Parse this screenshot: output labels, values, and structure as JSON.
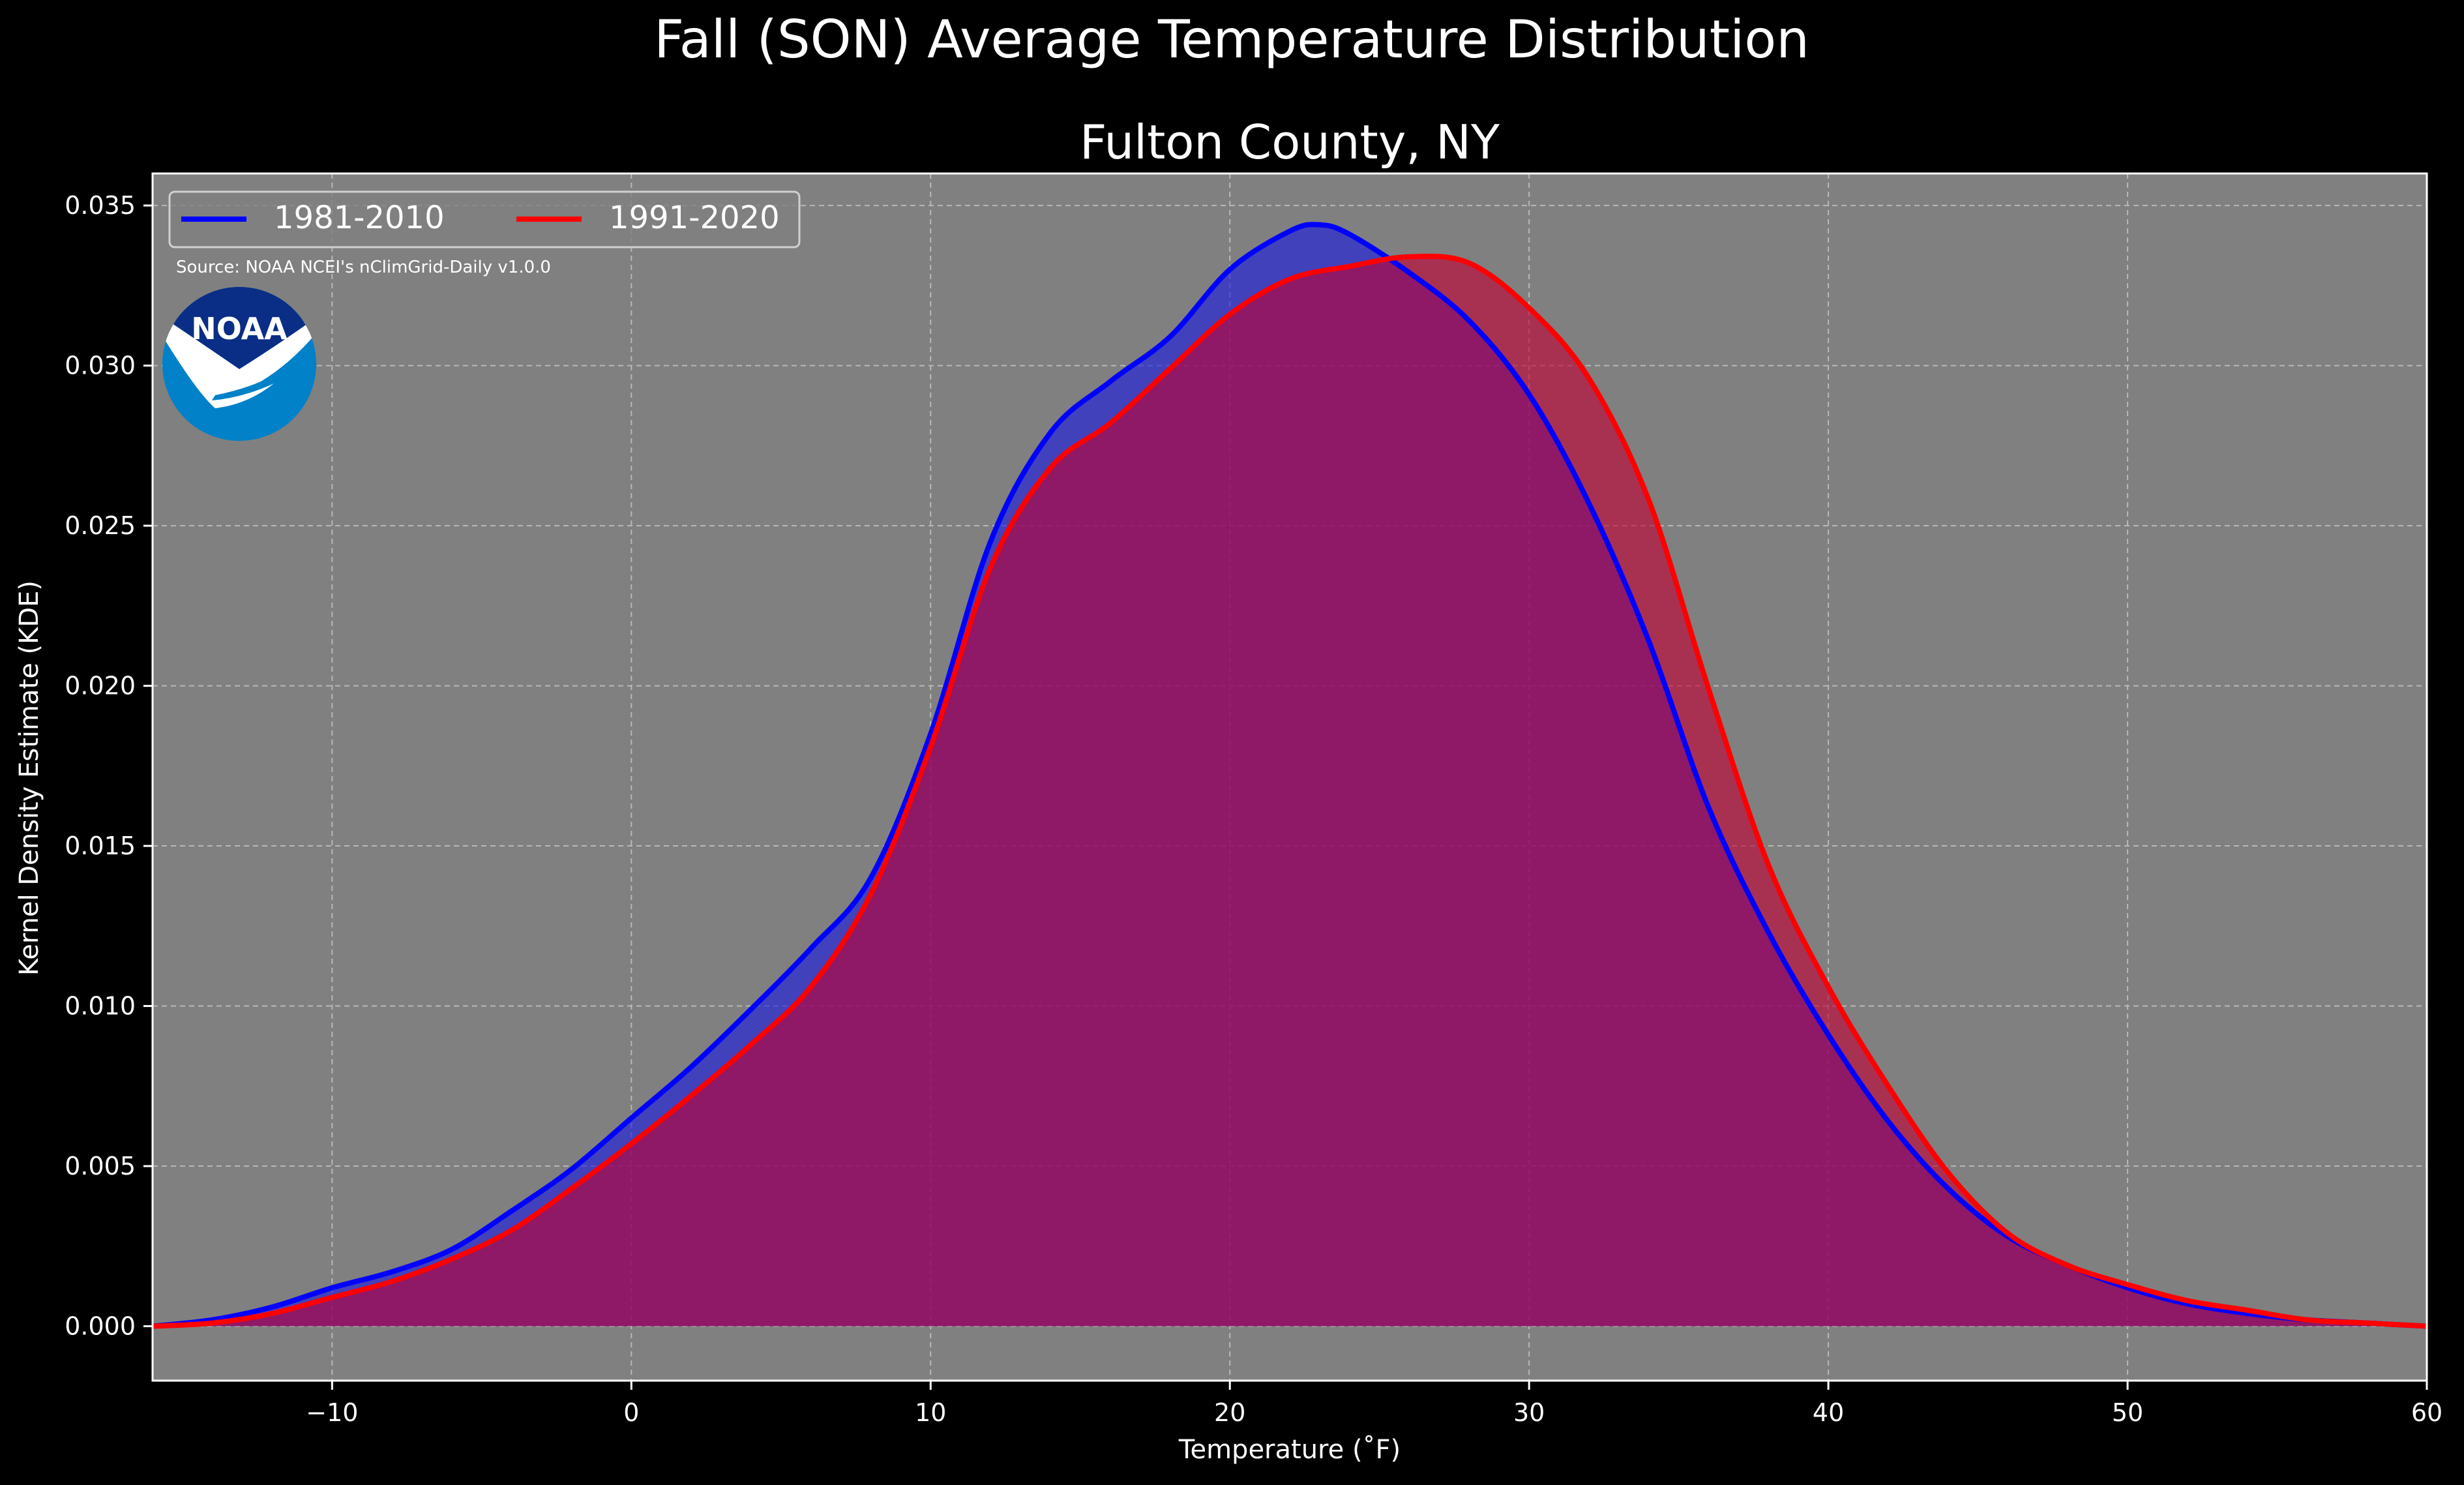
{
  "figure": {
    "suptitle": "Fall (SON) Average Temperature Distribution",
    "subtitle": "Fulton County, NY",
    "source_note": "Source: NOAA NCEI's nClimGrid-Daily v1.0.0",
    "logo_text": "NOAA",
    "colors": {
      "background": "#000000",
      "plot_bg": "#808080",
      "text": "#ffffff",
      "grid": "#b8b8b8"
    }
  },
  "chart_data": {
    "type": "area",
    "title": "Fulton County, NY",
    "xlabel": "Temperature ($^\\circ$F)",
    "xlabel_display": "Temperature (˚F)",
    "ylabel": "Kernel Density Estimate (KDE)",
    "xlim": [
      -16,
      60
    ],
    "ylim": [
      -0.0017,
      0.036
    ],
    "xticks": [
      -10,
      0,
      10,
      20,
      30,
      40,
      50,
      60
    ],
    "xtick_labels": [
      "−10",
      "0",
      "10",
      "20",
      "30",
      "40",
      "50",
      "60"
    ],
    "yticks": [
      0.0,
      0.005,
      0.01,
      0.015,
      0.02,
      0.025,
      0.03,
      0.035
    ],
    "ytick_labels": [
      "0.000",
      "0.005",
      "0.010",
      "0.015",
      "0.020",
      "0.025",
      "0.030",
      "0.035"
    ],
    "grid": true,
    "legend": {
      "placement": "top-left",
      "ncol": 2
    },
    "series": [
      {
        "name": "1981-2010",
        "line_color": "#0000ff",
        "fill_color": "#1a1ae0",
        "fill_opacity": 0.62,
        "x": [
          -16,
          -14,
          -12,
          -10,
          -8,
          -6,
          -4,
          -2,
          0,
          2,
          4,
          6,
          8,
          10,
          12,
          14,
          16,
          18,
          20,
          22,
          23,
          24,
          26,
          28,
          30,
          32,
          34,
          36,
          38,
          40,
          42,
          44,
          46,
          48,
          50,
          52,
          54,
          56,
          58,
          60
        ],
        "y": [
          0.0,
          0.0002,
          0.0006,
          0.0012,
          0.0017,
          0.0024,
          0.0036,
          0.0049,
          0.0065,
          0.0081,
          0.0099,
          0.0118,
          0.014,
          0.0185,
          0.0245,
          0.0279,
          0.0295,
          0.0309,
          0.033,
          0.0342,
          0.0344,
          0.0341,
          0.0329,
          0.0314,
          0.0291,
          0.0257,
          0.0214,
          0.0162,
          0.0123,
          0.0091,
          0.0064,
          0.0043,
          0.0028,
          0.0019,
          0.0012,
          0.0007,
          0.0004,
          0.0002,
          0.0001,
          0.0
        ]
      },
      {
        "name": "1991-2020",
        "line_color": "#ff0000",
        "fill_color": "#c00033",
        "fill_opacity": 0.62,
        "x": [
          -16,
          -14,
          -12,
          -10,
          -8,
          -6,
          -4,
          -2,
          0,
          2,
          4,
          6,
          8,
          10,
          12,
          14,
          16,
          18,
          20,
          22,
          24,
          26,
          28,
          30,
          32,
          34,
          36,
          38,
          40,
          42,
          44,
          46,
          48,
          50,
          52,
          54,
          56,
          58,
          60
        ],
        "y": [
          0.0,
          0.0001,
          0.0004,
          0.0009,
          0.0014,
          0.0021,
          0.003,
          0.0043,
          0.0057,
          0.0072,
          0.0088,
          0.0106,
          0.0135,
          0.0181,
          0.0237,
          0.0268,
          0.0282,
          0.0299,
          0.0316,
          0.0327,
          0.0331,
          0.0334,
          0.0332,
          0.0318,
          0.0296,
          0.0258,
          0.0199,
          0.0144,
          0.0106,
          0.0075,
          0.0048,
          0.0029,
          0.0019,
          0.0013,
          0.0008,
          0.0005,
          0.0002,
          0.0001,
          0.0
        ]
      }
    ]
  }
}
